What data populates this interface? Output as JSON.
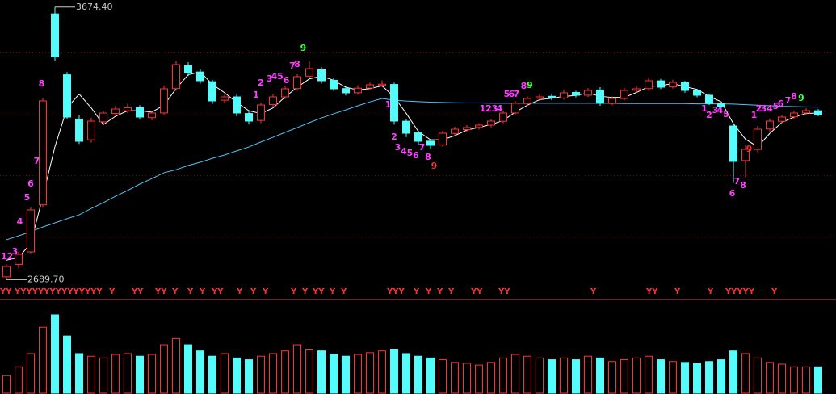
{
  "chart_data": {
    "type": "candlestick",
    "ylim": [
      2650,
      3700
    ],
    "up_color": "#ff3232",
    "down_color": "#54fcfc",
    "ohlc": [
      [
        2700,
        2745,
        2689.7,
        2737.5
      ],
      [
        2745,
        2790,
        2730,
        2781.2
      ],
      [
        2790,
        2950,
        2785,
        2941.7
      ],
      [
        2960,
        3345,
        2950,
        3335.4
      ],
      [
        3650,
        3674.4,
        3480,
        3495
      ],
      [
        3430,
        3440,
        3270,
        3277.1
      ],
      [
        3270,
        3285,
        3180,
        3189.6
      ],
      [
        3195,
        3275,
        3185,
        3262.5
      ],
      [
        3260,
        3300,
        3250,
        3291.7
      ],
      [
        3290,
        3318,
        3280,
        3306.2
      ],
      [
        3300,
        3325,
        3292,
        3310.4
      ],
      [
        3312,
        3320,
        3268,
        3277.1
      ],
      [
        3275,
        3300,
        3265,
        3291.7
      ],
      [
        3292,
        3390,
        3285,
        3379.2
      ],
      [
        3380,
        3480,
        3372,
        3466.7
      ],
      [
        3465,
        3475,
        3425,
        3437.5
      ],
      [
        3440,
        3450,
        3398,
        3408.3
      ],
      [
        3405,
        3412,
        3325,
        3335.4
      ],
      [
        3338,
        3360,
        3328,
        3350
      ],
      [
        3350,
        3358,
        3280,
        3291.7
      ],
      [
        3290,
        3300,
        3250,
        3262.5
      ],
      [
        3265,
        3330,
        3255,
        3320.8
      ],
      [
        3322,
        3360,
        3315,
        3350
      ],
      [
        3350,
        3388,
        3342,
        3379.2
      ],
      [
        3380,
        3432,
        3372,
        3422.9
      ],
      [
        3425,
        3478,
        3418,
        3452.1
      ],
      [
        3450,
        3458,
        3398,
        3408.3
      ],
      [
        3410,
        3418,
        3372,
        3379.2
      ],
      [
        3380,
        3390,
        3355,
        3364.6
      ],
      [
        3365,
        3392,
        3358,
        3381.5
      ],
      [
        3382,
        3402,
        3375,
        3393.8
      ],
      [
        3392,
        3410,
        3385,
        3396
      ],
      [
        3395,
        3402,
        3250,
        3262.5
      ],
      [
        3262,
        3270,
        3205,
        3218.7
      ],
      [
        3220,
        3228,
        3178,
        3189.6
      ],
      [
        3190,
        3198,
        3160,
        3175
      ],
      [
        3176,
        3228,
        3170,
        3218.7
      ],
      [
        3218,
        3242,
        3210,
        3233.3
      ],
      [
        3232,
        3248,
        3225,
        3239.2
      ],
      [
        3240,
        3255,
        3232,
        3247.9
      ],
      [
        3248,
        3270,
        3240,
        3262.5
      ],
      [
        3262,
        3300,
        3255,
        3291.7
      ],
      [
        3292,
        3335,
        3285,
        3326.7
      ],
      [
        3326,
        3352,
        3318,
        3344.2
      ],
      [
        3345,
        3360,
        3336,
        3350
      ],
      [
        3352,
        3362,
        3338,
        3345.8
      ],
      [
        3346,
        3375,
        3340,
        3364.6
      ],
      [
        3366,
        3372,
        3348,
        3355.8
      ],
      [
        3356,
        3382,
        3350,
        3373.3
      ],
      [
        3375,
        3385,
        3318,
        3326.7
      ],
      [
        3326,
        3352,
        3320,
        3344.2
      ],
      [
        3344,
        3382,
        3338,
        3373.3
      ],
      [
        3374,
        3388,
        3366,
        3379.2
      ],
      [
        3380,
        3420,
        3372,
        3408.3
      ],
      [
        3408,
        3415,
        3378,
        3385
      ],
      [
        3386,
        3412,
        3380,
        3402.5
      ],
      [
        3402,
        3408,
        3365,
        3373.3
      ],
      [
        3372,
        3378,
        3348,
        3355.8
      ],
      [
        3356,
        3362,
        3320,
        3326.7
      ],
      [
        3326,
        3334,
        3306,
        3315
      ],
      [
        3245,
        3255,
        3040,
        3116.7
      ],
      [
        3120,
        3175,
        3060,
        3160.4
      ],
      [
        3160,
        3245,
        3150,
        3233.3
      ],
      [
        3234,
        3272,
        3225,
        3262.5
      ],
      [
        3262,
        3285,
        3255,
        3277.1
      ],
      [
        3278,
        3300,
        3270,
        3291.7
      ],
      [
        3292,
        3310,
        3286,
        3300.4
      ],
      [
        3300,
        3306,
        3280,
        3285.8
      ]
    ],
    "lines": [
      {
        "color": "#ffffff",
        "values": [
          2760,
          2770,
          2820,
          2990,
          3170,
          3310,
          3360,
          3310,
          3250,
          3280,
          3300,
          3300,
          3295,
          3320,
          3380,
          3430,
          3440,
          3395,
          3365,
          3330,
          3300,
          3290,
          3310,
          3350,
          3385,
          3415,
          3425,
          3410,
          3385,
          3375,
          3380,
          3390,
          3350,
          3290,
          3225,
          3195,
          3195,
          3210,
          3230,
          3240,
          3250,
          3265,
          3295,
          3320,
          3340,
          3345,
          3352,
          3355,
          3364,
          3352,
          3348,
          3348,
          3366,
          3387,
          3391,
          3398,
          3387,
          3377,
          3352,
          3332,
          3253,
          3197,
          3170,
          3218,
          3258,
          3277,
          3290,
          3292
        ]
      },
      {
        "color": "#4fc3f7",
        "values": [
          2834,
          2848,
          2863,
          2880,
          2895,
          2910,
          2924,
          2947,
          2968,
          2991,
          3012,
          3035,
          3055,
          3076,
          3087,
          3102,
          3114,
          3128,
          3140,
          3155,
          3169,
          3187,
          3204,
          3222,
          3239,
          3257,
          3274,
          3289,
          3303,
          3318,
          3332,
          3344,
          3338,
          3335,
          3333,
          3331,
          3330,
          3329,
          3328,
          3328,
          3327,
          3327,
          3327,
          3327,
          3327,
          3327,
          3327,
          3327,
          3327,
          3327,
          3327,
          3326,
          3326,
          3326,
          3326,
          3326,
          3326,
          3325,
          3325,
          3325,
          3324,
          3322,
          3320,
          3318,
          3316,
          3315,
          3314,
          3313
        ]
      }
    ],
    "high_marker": {
      "value": 3674.4,
      "label": "3674.40"
    },
    "low_marker": {
      "value": 2689.7,
      "label": "2689.70"
    },
    "annotations": [
      {
        "text": "1",
        "x": -0.2,
        "y": 2772,
        "color": "#ff40ff"
      },
      {
        "text": "2",
        "x": 0.3,
        "y": 2772,
        "color": "#ff40ff"
      },
      {
        "text": "3",
        "x": 0.7,
        "y": 2790,
        "color": "#ff40ff"
      },
      {
        "text": "4",
        "x": 1.1,
        "y": 2898,
        "color": "#ff40ff"
      },
      {
        "text": "5",
        "x": 1.7,
        "y": 2985,
        "color": "#ff40ff"
      },
      {
        "text": "6",
        "x": 2.0,
        "y": 3035,
        "color": "#ff40ff"
      },
      {
        "text": "7",
        "x": 2.5,
        "y": 3117,
        "color": "#ff40ff"
      },
      {
        "text": "8",
        "x": 2.9,
        "y": 3397,
        "color": "#ff40ff"
      },
      {
        "text": "1",
        "x": 20.6,
        "y": 3356,
        "color": "#ff40ff"
      },
      {
        "text": "2",
        "x": 21.0,
        "y": 3400,
        "color": "#ff40ff"
      },
      {
        "text": "3",
        "x": 21.7,
        "y": 3414,
        "color": "#ff40ff"
      },
      {
        "text": "4",
        "x": 22.1,
        "y": 3423,
        "color": "#ff40ff"
      },
      {
        "text": "5",
        "x": 22.6,
        "y": 3423,
        "color": "#ff40ff"
      },
      {
        "text": "6",
        "x": 23.1,
        "y": 3408,
        "color": "#ff40ff"
      },
      {
        "text": "7",
        "x": 23.6,
        "y": 3461,
        "color": "#ff40ff"
      },
      {
        "text": "8",
        "x": 24.0,
        "y": 3467,
        "color": "#ff40ff"
      },
      {
        "text": "9",
        "x": 24.5,
        "y": 3525,
        "color": "#40ff40"
      },
      {
        "text": "1",
        "x": 31.5,
        "y": 3321,
        "color": "#ff40ff"
      },
      {
        "text": "2",
        "x": 32.0,
        "y": 3204,
        "color": "#ff40ff"
      },
      {
        "text": "3",
        "x": 32.3,
        "y": 3166,
        "color": "#ff40ff"
      },
      {
        "text": "4",
        "x": 32.8,
        "y": 3152,
        "color": "#ff40ff"
      },
      {
        "text": "5",
        "x": 33.3,
        "y": 3146,
        "color": "#ff40ff"
      },
      {
        "text": "6",
        "x": 33.8,
        "y": 3137,
        "color": "#ff40ff"
      },
      {
        "text": "7",
        "x": 34.3,
        "y": 3166,
        "color": "#ff40ff"
      },
      {
        "text": "8",
        "x": 34.8,
        "y": 3131,
        "color": "#ff40ff"
      },
      {
        "text": "9",
        "x": 35.3,
        "y": 3099,
        "color": "#ff3232"
      },
      {
        "text": "1",
        "x": 39.3,
        "y": 3306,
        "color": "#ff40ff"
      },
      {
        "text": "2",
        "x": 39.8,
        "y": 3306,
        "color": "#ff40ff"
      },
      {
        "text": "3",
        "x": 40.3,
        "y": 3306,
        "color": "#ff40ff"
      },
      {
        "text": "4",
        "x": 40.7,
        "y": 3306,
        "color": "#ff40ff"
      },
      {
        "text": "5",
        "x": 41.3,
        "y": 3359,
        "color": "#ff40ff"
      },
      {
        "text": "6",
        "x": 41.7,
        "y": 3359,
        "color": "#ff40ff"
      },
      {
        "text": "7",
        "x": 42.1,
        "y": 3359,
        "color": "#ff40ff"
      },
      {
        "text": "8",
        "x": 42.7,
        "y": 3388,
        "color": "#ff40ff"
      },
      {
        "text": "9",
        "x": 43.2,
        "y": 3391,
        "color": "#40ff40"
      },
      {
        "text": "1",
        "x": 57.6,
        "y": 3306,
        "color": "#ff40ff"
      },
      {
        "text": "2",
        "x": 58.0,
        "y": 3283,
        "color": "#ff40ff"
      },
      {
        "text": "3",
        "x": 58.5,
        "y": 3300,
        "color": "#ff40ff"
      },
      {
        "text": "4",
        "x": 58.9,
        "y": 3300,
        "color": "#ff40ff"
      },
      {
        "text": "5",
        "x": 59.4,
        "y": 3286,
        "color": "#ff40ff"
      },
      {
        "text": "6",
        "x": 59.9,
        "y": 3000,
        "color": "#ff40ff"
      },
      {
        "text": "7",
        "x": 60.3,
        "y": 3044,
        "color": "#ff40ff"
      },
      {
        "text": "8",
        "x": 60.8,
        "y": 3029,
        "color": "#ff40ff"
      },
      {
        "text": "9",
        "x": 61.3,
        "y": 3160,
        "color": "#ff3232"
      },
      {
        "text": "1",
        "x": 61.7,
        "y": 3283,
        "color": "#ff40ff"
      },
      {
        "text": "2",
        "x": 62.1,
        "y": 3306,
        "color": "#ff40ff"
      },
      {
        "text": "3",
        "x": 62.5,
        "y": 3306,
        "color": "#ff40ff"
      },
      {
        "text": "4",
        "x": 63.0,
        "y": 3306,
        "color": "#ff40ff"
      },
      {
        "text": "5",
        "x": 63.5,
        "y": 3315,
        "color": "#ff40ff"
      },
      {
        "text": "6",
        "x": 63.9,
        "y": 3324,
        "color": "#ff40ff"
      },
      {
        "text": "7",
        "x": 64.5,
        "y": 3335,
        "color": "#ff40ff"
      },
      {
        "text": "8",
        "x": 65.0,
        "y": 3350,
        "color": "#ff40ff"
      },
      {
        "text": "9",
        "x": 65.6,
        "y": 3344,
        "color": "#40ff40"
      }
    ],
    "signals": {
      "color": "#ff3232",
      "items": [
        {
          "x": -0.53,
          "text": "YY"
        },
        {
          "x": 0.67,
          "text": "YYYYYYYYYYYYYYY"
        },
        {
          "x": 8.47,
          "text": "Y"
        },
        {
          "x": 10.33,
          "text": "YY"
        },
        {
          "x": 12.27,
          "text": "YY"
        },
        {
          "x": 13.67,
          "text": "Y"
        },
        {
          "x": 14.93,
          "text": "Y"
        },
        {
          "x": 15.93,
          "text": "Y"
        },
        {
          "x": 16.93,
          "text": "YY"
        },
        {
          "x": 19.0,
          "text": "Y"
        },
        {
          "x": 20.13,
          "text": "Y"
        },
        {
          "x": 21.13,
          "text": "Y"
        },
        {
          "x": 23.47,
          "text": "Y"
        },
        {
          "x": 24.4,
          "text": "Y"
        },
        {
          "x": 25.27,
          "text": "YY"
        },
        {
          "x": 26.67,
          "text": "Y"
        },
        {
          "x": 27.6,
          "text": "Y"
        },
        {
          "x": 31.4,
          "text": "YYY"
        },
        {
          "x": 33.6,
          "text": "Y"
        },
        {
          "x": 34.6,
          "text": "Y"
        },
        {
          "x": 35.53,
          "text": "Y"
        },
        {
          "x": 36.47,
          "text": "Y"
        },
        {
          "x": 38.33,
          "text": "YY"
        },
        {
          "x": 40.6,
          "text": "YY"
        },
        {
          "x": 48.2,
          "text": "Y"
        },
        {
          "x": 52.8,
          "text": "YY"
        },
        {
          "x": 55.13,
          "text": "Y"
        },
        {
          "x": 57.87,
          "text": "Y"
        },
        {
          "x": 59.33,
          "text": "YYYYY"
        },
        {
          "x": 63.13,
          "text": "Y"
        }
      ]
    },
    "volume": {
      "ylim": [
        0,
        100
      ],
      "values": [
        20,
        30,
        45,
        75,
        89,
        65,
        45,
        42,
        40,
        44,
        45,
        42,
        44,
        55,
        62,
        55,
        48,
        42,
        45,
        40,
        38,
        42,
        45,
        48,
        55,
        50,
        48,
        44,
        42,
        44,
        46,
        48,
        50,
        45,
        42,
        40,
        38,
        35,
        34,
        32,
        35,
        40,
        44,
        42,
        40,
        38,
        40,
        38,
        42,
        40,
        36,
        38,
        40,
        42,
        38,
        36,
        35,
        34,
        36,
        38,
        48,
        45,
        40,
        35,
        33,
        30,
        30,
        30
      ]
    }
  }
}
